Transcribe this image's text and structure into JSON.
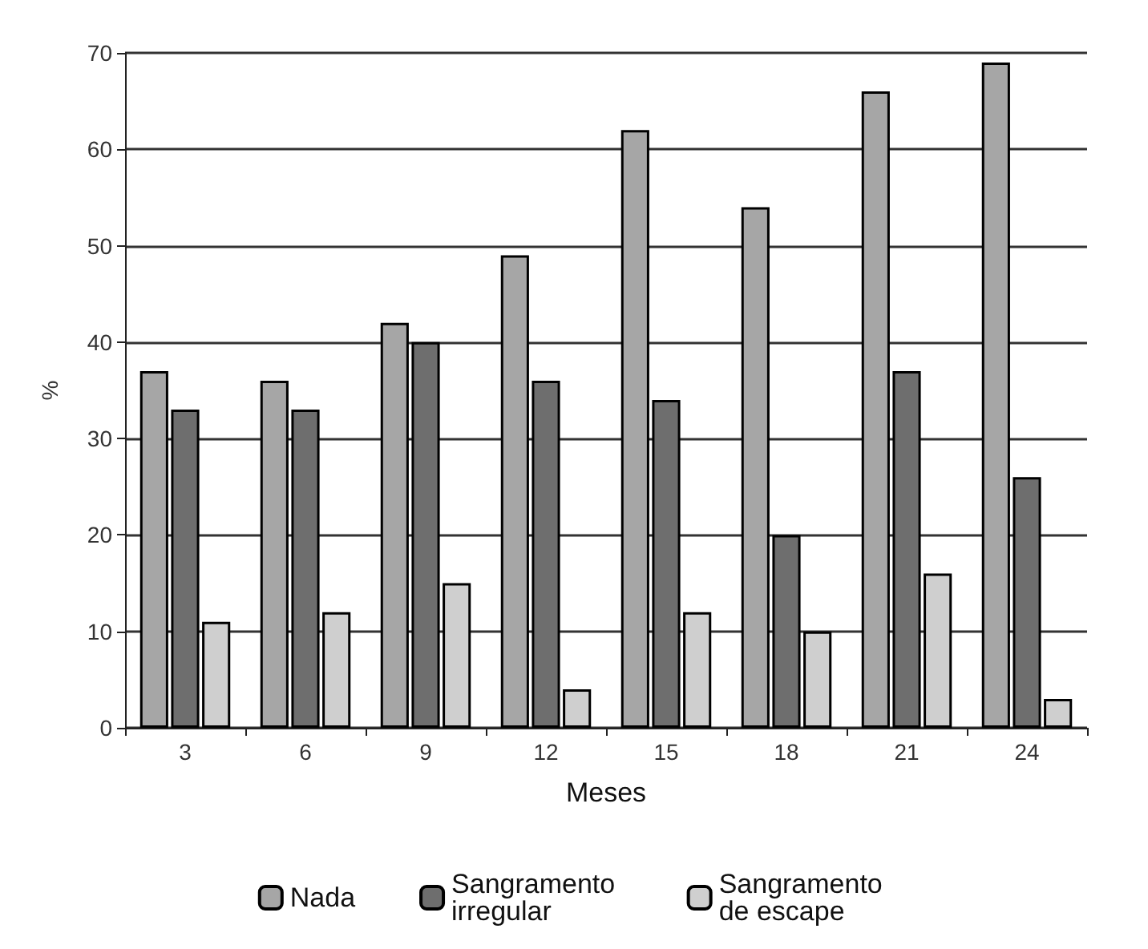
{
  "chart_data": {
    "type": "bar",
    "xlabel": "Meses",
    "ylabel": "%",
    "categories": [
      "3",
      "6",
      "9",
      "12",
      "15",
      "18",
      "21",
      "24"
    ],
    "series": [
      {
        "name": "Nada",
        "color": "#a6a6a6",
        "values": [
          37,
          36,
          42,
          49,
          62,
          54,
          66,
          69
        ]
      },
      {
        "name": "Sangramento irregular",
        "color": "#6e6e6e",
        "values": [
          33,
          33,
          40,
          36,
          34,
          20,
          37,
          26
        ]
      },
      {
        "name": "Sangramento de escape",
        "color": "#cfcfcf",
        "values": [
          11,
          12,
          15,
          4,
          12,
          10,
          16,
          3
        ]
      }
    ],
    "ylim": [
      0,
      70
    ],
    "yticks": [
      0,
      10,
      20,
      30,
      40,
      50,
      60,
      70
    ],
    "grid": "y",
    "legend": "bottom"
  }
}
